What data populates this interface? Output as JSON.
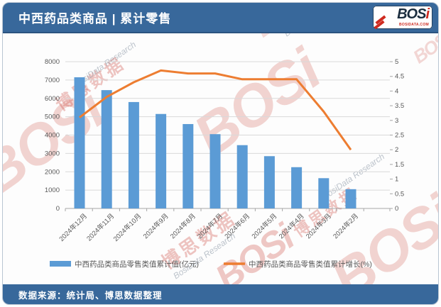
{
  "header": {
    "title": "中西药品类商品 | 累计零售",
    "logo": {
      "text": "BOS",
      "accent": "i",
      "subtext": "BOSIDATA.COM"
    }
  },
  "footer": {
    "text": "数据来源：统计局、博思数据整理"
  },
  "watermarks": {
    "brand": "BOSi",
    "brand_cn": "博思数据",
    "research": "BosiData Research"
  },
  "colors": {
    "header_bg": "#38689B",
    "bar": "#5B9BD5",
    "line": "#ED7D31",
    "grid": "#D9D9D9",
    "axis": "#A6A6A6",
    "tick_text": "#595959"
  },
  "chart_data": {
    "type": "bar",
    "subtype": "bar+line combo, dual axis",
    "categories": [
      "2024年12月",
      "2024年11月",
      "2024年10月",
      "2024年9月",
      "2024年8月",
      "2024年7月",
      "2024年6月",
      "2024年5月",
      "2024年4月",
      "2024年3月",
      "2024年2月"
    ],
    "series": [
      {
        "name": "中西药品类商品零售类值累计值(亿元)",
        "type": "bar",
        "axis": "left",
        "color": "#5B9BD5",
        "values": [
          7150,
          6450,
          5800,
          5150,
          4600,
          4050,
          3450,
          2850,
          2250,
          1650,
          1050
        ]
      },
      {
        "name": "中西药品类商品零售类值累计增长(%)",
        "type": "line",
        "axis": "right",
        "color": "#ED7D31",
        "values": [
          3.1,
          3.8,
          4.3,
          4.7,
          4.6,
          4.6,
          4.4,
          4.4,
          4.4,
          3.3,
          2.0
        ]
      }
    ],
    "left_axis": {
      "min": 0,
      "max": 8000,
      "step": 1000
    },
    "right_axis": {
      "min": 0,
      "max": 5,
      "step": 0.5
    },
    "grid": true,
    "legend_position": "bottom",
    "x_labels_rotation_deg": -45
  }
}
